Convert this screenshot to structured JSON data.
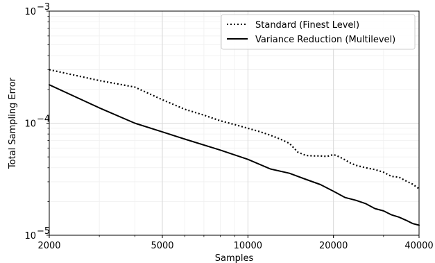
{
  "chart_data": {
    "type": "line",
    "xlabel": "Samples",
    "ylabel": "Total Sampling Error",
    "xscale": "log",
    "yscale": "log",
    "xlim": [
      2000,
      40000
    ],
    "ylim": [
      1e-05,
      0.001
    ],
    "x_ticks": [
      {
        "value": 2000,
        "label": "2000"
      },
      {
        "value": 5000,
        "label": "5000"
      },
      {
        "value": 10000,
        "label": "10000"
      },
      {
        "value": 20000,
        "label": "20000"
      },
      {
        "value": 40000,
        "label": "40000"
      }
    ],
    "y_ticks": [
      {
        "value": 1e-05,
        "base": "10",
        "exp": "−5"
      },
      {
        "value": 0.0001,
        "base": "10",
        "exp": "−4"
      },
      {
        "value": 0.001,
        "base": "10",
        "exp": "−3"
      }
    ],
    "grid": true,
    "legend_position": "upper-right",
    "series": [
      {
        "name": "Standard (Finest Level)",
        "style": "dotted",
        "color": "#000000",
        "x": [
          2000,
          3000,
          4000,
          5000,
          6000,
          7000,
          8000,
          9000,
          10000,
          11000,
          12000,
          13000,
          14000,
          15000,
          16000,
          17000,
          18000,
          19000,
          20000,
          21000,
          22000,
          23000,
          24000,
          26000,
          28000,
          30000,
          32000,
          34000,
          36000,
          38000,
          40000
        ],
        "y": [
          0.0003,
          0.00024,
          0.00021,
          0.000162,
          0.000133,
          0.000118,
          0.000105,
          9.7e-05,
          9e-05,
          8.4e-05,
          7.8e-05,
          7.2e-05,
          6.6e-05,
          5.5e-05,
          5.15e-05,
          5.1e-05,
          5.1e-05,
          5.05e-05,
          5.25e-05,
          5e-05,
          4.7e-05,
          4.4e-05,
          4.2e-05,
          4e-05,
          3.85e-05,
          3.65e-05,
          3.35e-05,
          3.3e-05,
          3.05e-05,
          2.85e-05,
          2.6e-05
        ]
      },
      {
        "name": "Variance Reduction (Multilevel)",
        "style": "solid",
        "color": "#000000",
        "x": [
          2000,
          3000,
          4000,
          5000,
          6000,
          8000,
          10000,
          12000,
          14000,
          16000,
          18000,
          20000,
          22000,
          24000,
          26000,
          28000,
          30000,
          32000,
          34000,
          36000,
          38000,
          40000
        ],
        "y": [
          0.00022,
          0.000137,
          0.0001,
          8.35e-05,
          7.2e-05,
          5.75e-05,
          4.75e-05,
          3.9e-05,
          3.57e-05,
          3.15e-05,
          2.83e-05,
          2.47e-05,
          2.17e-05,
          2.05e-05,
          1.91e-05,
          1.73e-05,
          1.65e-05,
          1.52e-05,
          1.45e-05,
          1.36e-05,
          1.27e-05,
          1.23e-05
        ]
      }
    ]
  }
}
